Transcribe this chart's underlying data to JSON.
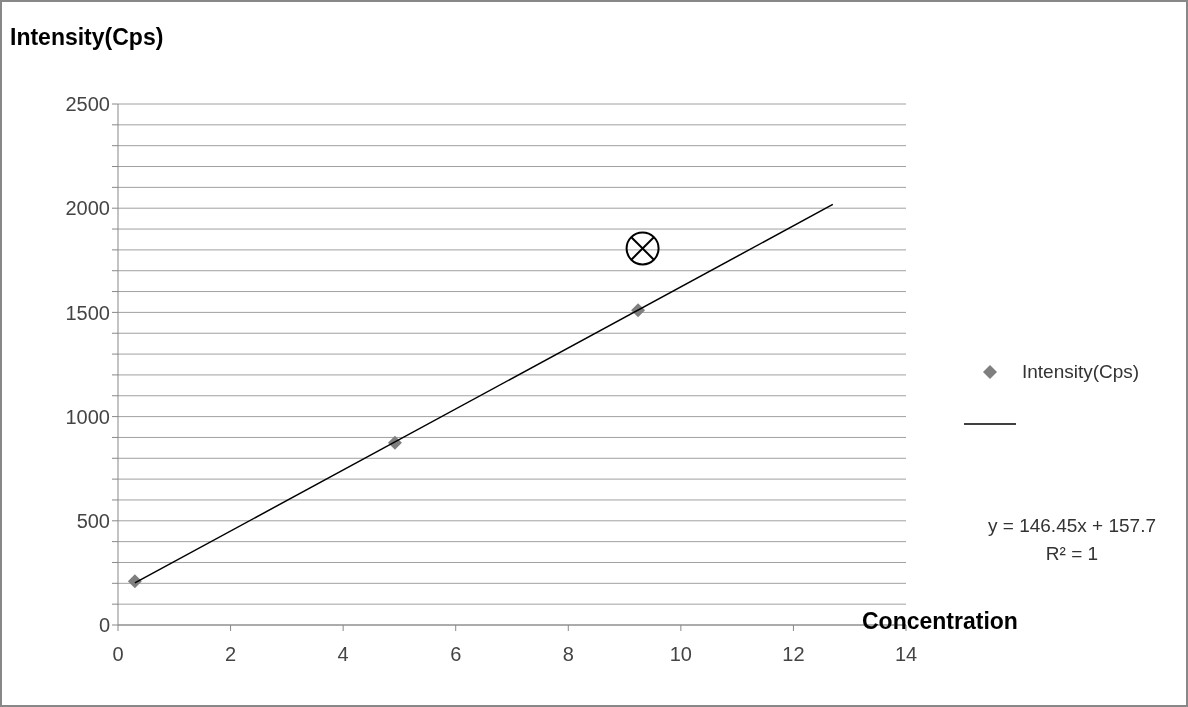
{
  "chart_data": {
    "type": "scatter",
    "ylabel": "Intensity(Cps)",
    "xlabel": "Concentration",
    "xlim": [
      0,
      14
    ],
    "xticks": [
      0,
      2,
      4,
      6,
      8,
      10,
      12,
      14
    ],
    "ylim": [
      0,
      2500
    ],
    "yticks": [
      0,
      {
        "value": 100,
        "label": null
      },
      {
        "value": 200,
        "label": null
      },
      {
        "value": 300,
        "label": null
      },
      {
        "value": 400,
        "label": null
      },
      500,
      {
        "value": 600,
        "label": null
      },
      {
        "value": 700,
        "label": null
      },
      {
        "value": 800,
        "label": null
      },
      {
        "value": 900,
        "label": null
      },
      1000,
      {
        "value": 1100,
        "label": null
      },
      {
        "value": 1200,
        "label": null
      },
      {
        "value": 1300,
        "label": null
      },
      {
        "value": 1400,
        "label": null
      },
      1500,
      {
        "value": 1600,
        "label": null
      },
      {
        "value": 1700,
        "label": null
      },
      {
        "value": 1800,
        "label": null
      },
      {
        "value": 1900,
        "label": null
      },
      2000,
      {
        "value": 2100,
        "label": null
      },
      {
        "value": 2200,
        "label": null
      },
      {
        "value": 2300,
        "label": null
      },
      {
        "value": 2400,
        "label": null
      },
      2500
    ],
    "grid": "y",
    "legend": "right",
    "series": [
      {
        "name": "Intensity(Cps)",
        "marker": "diamond",
        "color": "#7f7f7f",
        "x": [
          0.3,
          4.92,
          9.24
        ],
        "values": [
          210,
          875,
          1510
        ]
      },
      {
        "type": "line",
        "marker": "none",
        "line_style": "solid",
        "color": "#000000",
        "x": [
          0.3,
          12.7
        ],
        "values": [
          202,
          2018
        ]
      },
      {
        "marker": "circle",
        "color": "#000000",
        "x": [
          9.32
        ],
        "values": [
          1807
        ]
      }
    ],
    "annotations": [
      "y = 146.45x + 157.7",
      "R² = 1"
    ]
  }
}
